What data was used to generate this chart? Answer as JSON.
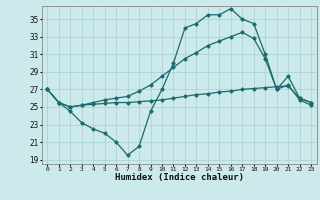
{
  "xlabel": "Humidex (Indice chaleur)",
  "background_color": "#cce9eb",
  "grid_color": "#a8d0d3",
  "line_color": "#1a6b6e",
  "xlim": [
    -0.5,
    23.5
  ],
  "ylim": [
    18.5,
    36.5
  ],
  "yticks": [
    19,
    21,
    23,
    25,
    27,
    29,
    31,
    33,
    35
  ],
  "xticks": [
    0,
    1,
    2,
    3,
    4,
    5,
    6,
    7,
    8,
    9,
    10,
    11,
    12,
    13,
    14,
    15,
    16,
    17,
    18,
    19,
    20,
    21,
    22,
    23
  ],
  "series": [
    [
      27.0,
      25.5,
      24.5,
      23.2,
      22.5,
      22.0,
      21.0,
      19.5,
      20.5,
      24.5,
      27.0,
      30.0,
      34.0,
      34.5,
      35.5,
      35.5,
      36.2,
      35.0,
      34.5,
      31.0,
      27.0,
      28.5,
      26.0,
      25.5
    ],
    [
      27.0,
      25.5,
      25.0,
      25.2,
      25.3,
      25.4,
      25.5,
      25.5,
      25.6,
      25.7,
      25.8,
      26.0,
      26.2,
      26.4,
      26.5,
      26.7,
      26.8,
      27.0,
      27.1,
      27.2,
      27.3,
      27.4,
      26.0,
      25.5
    ],
    [
      27.0,
      25.5,
      25.0,
      25.2,
      25.5,
      25.8,
      26.0,
      26.2,
      26.8,
      27.5,
      28.5,
      29.5,
      30.5,
      31.2,
      32.0,
      32.5,
      33.0,
      33.5,
      32.8,
      30.5,
      27.0,
      27.5,
      25.8,
      25.2
    ]
  ]
}
